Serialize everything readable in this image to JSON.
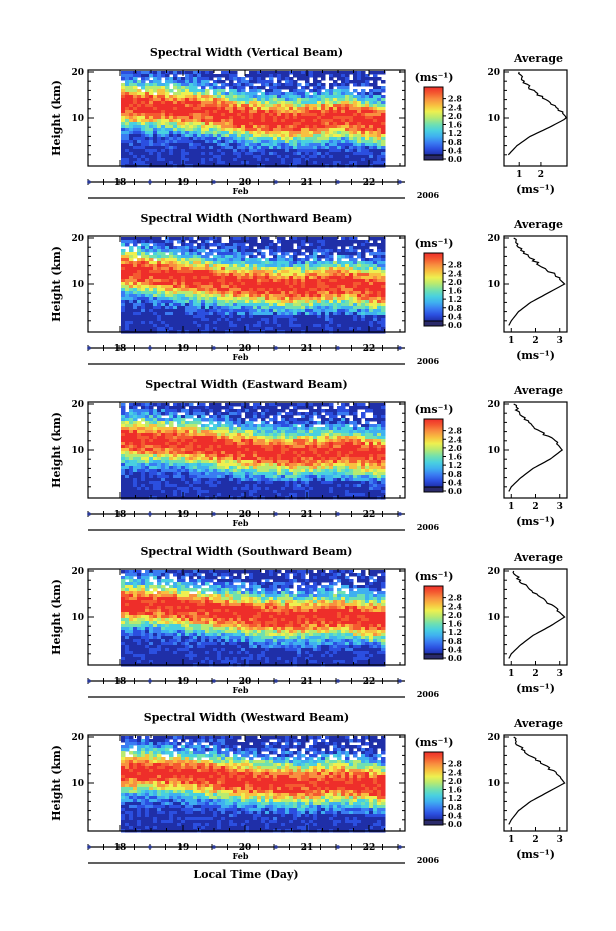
{
  "figure": {
    "x_axis_label": "Local Time (Day)",
    "month_label": "Feb",
    "year_label": "2006",
    "height_axis_label": "Height (km)",
    "unit_label": "(ms⁻¹)",
    "average_title": "Average",
    "colormap": [
      "#1f2fa8",
      "#2b4fe0",
      "#3a7cf2",
      "#3fb0f0",
      "#49d0e0",
      "#70e0b0",
      "#b8ea70",
      "#eef050",
      "#f8c040",
      "#f89040",
      "#f45a30",
      "#ee2e2a"
    ]
  },
  "chart_data": [
    {
      "type": "heatmap",
      "title": "Spectral Width (Vertical Beam)",
      "x_ticks": [
        "18",
        "19",
        "20",
        "21",
        "22"
      ],
      "y_ticks": [
        "10",
        "20"
      ],
      "y_range_km": [
        0,
        20
      ],
      "colorbar_ticks": [
        "0.0",
        "0.4",
        "0.8",
        "1.2",
        "1.6",
        "2.0",
        "2.4",
        "2.8"
      ],
      "colorbar_range": [
        0,
        3.0
      ],
      "ridge_height_km": [
        13,
        12.5,
        11.5,
        10,
        9.5,
        10.5,
        9
      ],
      "average_profile": {
        "x_ticks": [
          "1",
          "2"
        ],
        "x_range": [
          0.3,
          3.2
        ],
        "height_km": [
          2,
          4,
          6,
          8,
          10,
          12,
          14,
          16,
          18,
          20
        ],
        "value": [
          0.5,
          0.9,
          1.5,
          2.4,
          3.2,
          2.8,
          2.2,
          1.6,
          1.2,
          1.0
        ]
      }
    },
    {
      "type": "heatmap",
      "title": "Spectral Width (Northward Beam)",
      "x_ticks": [
        "18",
        "19",
        "20",
        "21",
        "22"
      ],
      "y_ticks": [
        "10",
        "20"
      ],
      "y_range_km": [
        0,
        20
      ],
      "colorbar_ticks": [
        "0.0",
        "0.4",
        "0.8",
        "1.2",
        "1.6",
        "2.0",
        "2.4",
        "2.8"
      ],
      "colorbar_range": [
        0,
        3.0
      ],
      "ridge_height_km": [
        13,
        12,
        11,
        10,
        9.5,
        10.5,
        9
      ],
      "average_profile": {
        "x_ticks": [
          "1",
          "2",
          "3"
        ],
        "x_range": [
          0.7,
          3.3
        ],
        "height_km": [
          1,
          2,
          4,
          6,
          8,
          10,
          12,
          14,
          16,
          18,
          20
        ],
        "value": [
          0.9,
          1.0,
          1.3,
          1.8,
          2.5,
          3.2,
          2.8,
          2.2,
          1.7,
          1.3,
          1.1
        ]
      }
    },
    {
      "type": "heatmap",
      "title": "Spectral Width (Eastward Beam)",
      "x_ticks": [
        "18",
        "19",
        "20",
        "21",
        "22"
      ],
      "y_ticks": [
        "10",
        "20"
      ],
      "y_range_km": [
        0,
        20
      ],
      "colorbar_ticks": [
        "0.0",
        "0.4",
        "0.8",
        "1.2",
        "1.6",
        "2.0",
        "2.4",
        "2.8"
      ],
      "colorbar_range": [
        0,
        3.0
      ],
      "ridge_height_km": [
        12.5,
        12,
        11,
        10,
        9.5,
        10,
        9
      ],
      "average_profile": {
        "x_ticks": [
          "1",
          "2",
          "3"
        ],
        "x_range": [
          0.7,
          3.3
        ],
        "height_km": [
          1,
          2,
          4,
          6,
          8,
          10,
          12,
          14,
          16,
          18,
          20
        ],
        "value": [
          0.9,
          1.0,
          1.4,
          1.9,
          2.6,
          3.1,
          2.8,
          2.2,
          1.7,
          1.3,
          1.1
        ]
      }
    },
    {
      "type": "heatmap",
      "title": "Spectral Width (Southward Beam)",
      "x_ticks": [
        "18",
        "19",
        "20",
        "21",
        "22"
      ],
      "y_ticks": [
        "10",
        "20"
      ],
      "y_range_km": [
        0,
        20
      ],
      "colorbar_ticks": [
        "0.0",
        "0.4",
        "0.8",
        "1.2",
        "1.6",
        "2.0",
        "2.4",
        "2.8"
      ],
      "colorbar_range": [
        0,
        3.0
      ],
      "ridge_height_km": [
        13,
        12.5,
        11.5,
        10.5,
        10,
        10.5,
        9.5
      ],
      "average_profile": {
        "x_ticks": [
          "1",
          "2",
          "3"
        ],
        "x_range": [
          0.7,
          3.3
        ],
        "height_km": [
          1,
          2,
          4,
          6,
          8,
          10,
          12,
          14,
          16,
          18,
          20
        ],
        "value": [
          0.9,
          1.0,
          1.4,
          1.9,
          2.6,
          3.2,
          2.8,
          2.3,
          1.8,
          1.3,
          1.1
        ]
      }
    },
    {
      "type": "heatmap",
      "title": "Spectral Width (Westward Beam)",
      "x_ticks": [
        "18",
        "19",
        "20",
        "21",
        "22"
      ],
      "y_ticks": [
        "10",
        "20"
      ],
      "y_range_km": [
        0,
        20
      ],
      "colorbar_ticks": [
        "0.0",
        "0.4",
        "0.8",
        "1.2",
        "1.6",
        "2.0",
        "2.4",
        "2.8"
      ],
      "colorbar_range": [
        0,
        3.0
      ],
      "ridge_height_km": [
        12.5,
        12.5,
        11.5,
        10.5,
        10,
        10.5,
        9.5
      ],
      "average_profile": {
        "x_ticks": [
          "1",
          "2",
          "3"
        ],
        "x_range": [
          0.7,
          3.3
        ],
        "height_km": [
          1,
          2,
          4,
          6,
          8,
          10,
          12,
          14,
          16,
          18,
          20
        ],
        "value": [
          0.9,
          1.0,
          1.3,
          1.8,
          2.5,
          3.2,
          2.9,
          2.3,
          1.8,
          1.3,
          1.1
        ]
      }
    }
  ]
}
